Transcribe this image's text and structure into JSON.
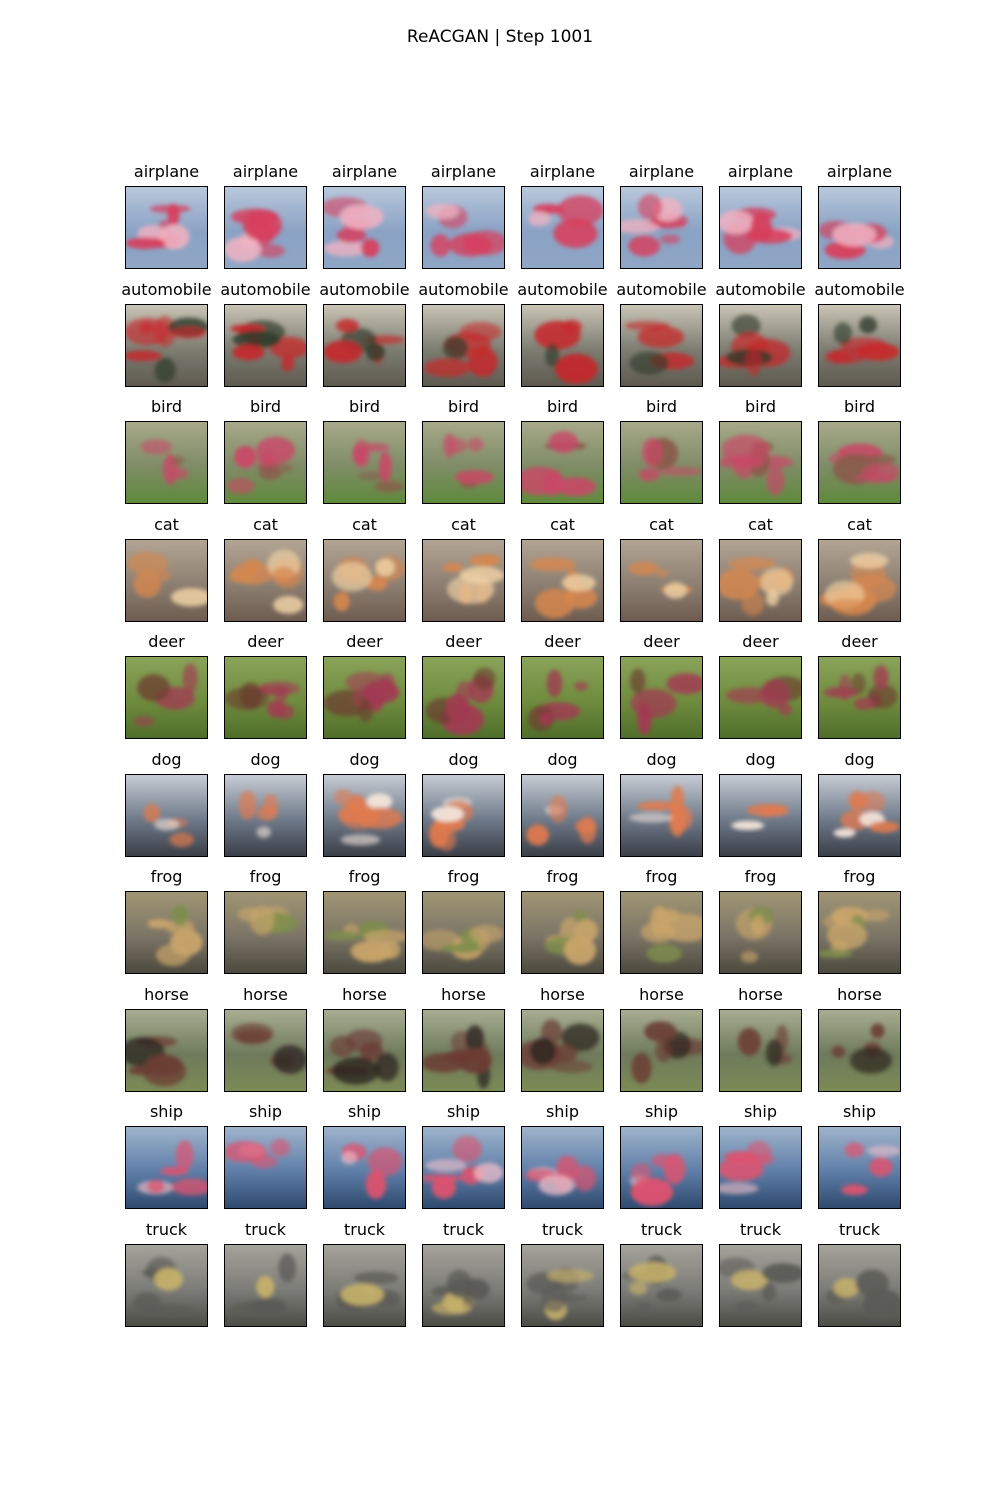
{
  "figure": {
    "title": "ReACGAN | Step 1001"
  },
  "grid": {
    "columns": 8,
    "rows": [
      {
        "label": "airplane",
        "palette": {
          "bg": "#8aa2c4",
          "bg2": "#b9c8dc",
          "blob": "#d83e5c",
          "blob2": "#f0b2c2",
          "ground": "#8fa6c6"
        }
      },
      {
        "label": "automobile",
        "palette": {
          "bg": "#7d7d72",
          "bg2": "#c9c4b5",
          "blob": "#c8262a",
          "blob2": "#2f3a2a",
          "ground": "#5e5a50"
        }
      },
      {
        "label": "bird",
        "palette": {
          "bg": "#7f8c66",
          "bg2": "#a7a98a",
          "blob": "#c94867",
          "blob2": "#8a5a4a",
          "ground": "#5f8a3c"
        }
      },
      {
        "label": "cat",
        "palette": {
          "bg": "#8c7f72",
          "bg2": "#b3a594",
          "blob": "#d7874d",
          "blob2": "#f0d2a5",
          "ground": "#6e5c50"
        }
      },
      {
        "label": "deer",
        "palette": {
          "bg": "#6f8c3e",
          "bg2": "#8aa35a",
          "blob": "#a23a52",
          "blob2": "#6b3d2f",
          "ground": "#4f6e2a"
        }
      },
      {
        "label": "dog",
        "palette": {
          "bg": "#6f7a8a",
          "bg2": "#c6ccd4",
          "blob": "#e27a4e",
          "blob2": "#f4e6dc",
          "ground": "#3b3f48"
        }
      },
      {
        "label": "frog",
        "palette": {
          "bg": "#7b7466",
          "bg2": "#a09674",
          "blob": "#c9a56a",
          "blob2": "#7d8e4b",
          "ground": "#4c4a3e"
        }
      },
      {
        "label": "horse",
        "palette": {
          "bg": "#6f7a5c",
          "bg2": "#a8ad92",
          "blob": "#6b3c33",
          "blob2": "#2b241f",
          "ground": "#7c8a55"
        }
      },
      {
        "label": "ship",
        "palette": {
          "bg": "#5e7ea8",
          "bg2": "#9fb4cc",
          "blob": "#e0526e",
          "blob2": "#f4c2cc",
          "ground": "#2f4a6e"
        }
      },
      {
        "label": "truck",
        "palette": {
          "bg": "#7c7c78",
          "bg2": "#a5a39a",
          "blob": "#5a5a56",
          "blob2": "#c8b26a",
          "ground": "#4d4d48"
        }
      }
    ]
  }
}
